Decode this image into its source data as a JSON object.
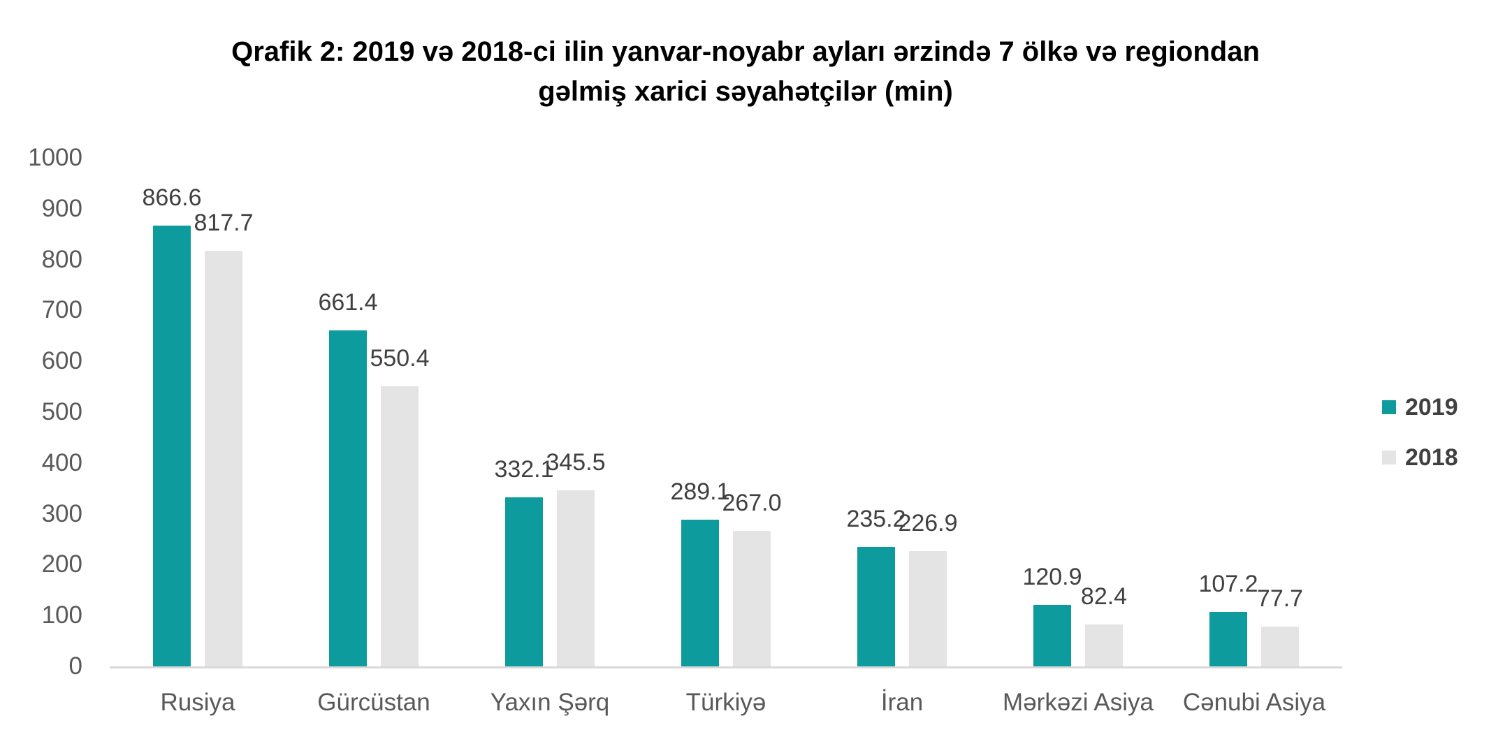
{
  "title": {
    "lines": [
      "Qrafik 2: 2019 və 2018-ci ilin yanvar-noyabr ayları ərzində 7 ölkə və regiondan",
      "gəlmiş xarici səyahətçilər (min)"
    ]
  },
  "colors": {
    "series_2019": "#0E9B9E",
    "series_2018": "#E4E4E4",
    "axis_line": "#D9D9D9",
    "tick_label": "#595959",
    "value_label": "#404040",
    "title_text": "#000000"
  },
  "legend": {
    "position": "right",
    "items": [
      {
        "label": "2019"
      },
      {
        "label": "2018"
      }
    ]
  },
  "chart_data": {
    "type": "bar",
    "title": "Qrafik 2: 2019 və 2018-ci ilin yanvar-noyabr ayları ərzində 7 ölkə və regiondan gəlmiş xarici səyahətçilər (min)",
    "categories": [
      "Rusiya",
      "Gürcüstan",
      "Yaxın Şərq",
      "Türkiyə",
      "İran",
      "Mərkəzi Asiya",
      "Cənubi Asiya"
    ],
    "series": [
      {
        "name": "2019",
        "color": "#0E9B9E",
        "values": [
          866.6,
          661.4,
          332.1,
          289.1,
          235.2,
          120.9,
          107.2
        ]
      },
      {
        "name": "2018",
        "color": "#E4E4E4",
        "values": [
          817.7,
          550.4,
          345.5,
          267.0,
          226.9,
          82.4,
          77.7
        ]
      }
    ],
    "xlabel": "",
    "ylabel": "",
    "ylim": [
      0,
      1000
    ],
    "yticks": [
      0,
      100,
      200,
      300,
      400,
      500,
      600,
      700,
      800,
      900,
      1000
    ],
    "grid": false,
    "value_labels": true,
    "legend_position": "right"
  }
}
